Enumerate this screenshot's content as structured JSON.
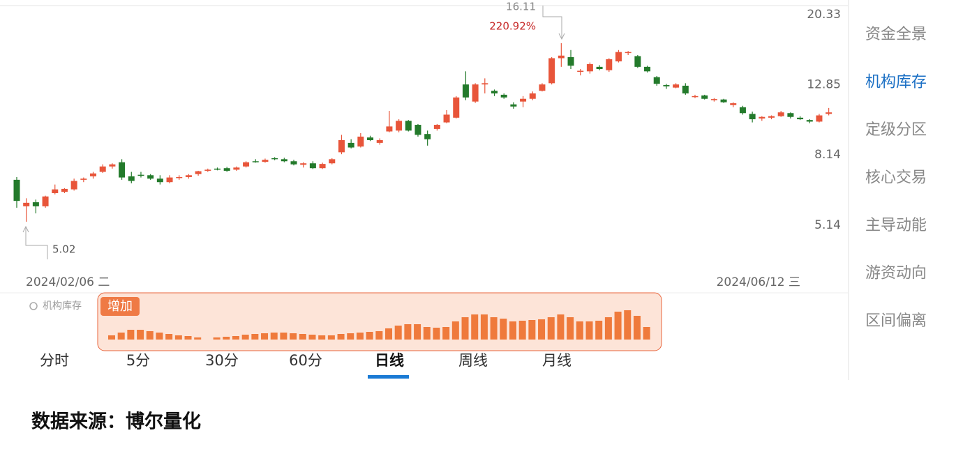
{
  "chart_data": [
    {
      "type": "candlestick",
      "log": true,
      "ylim": [
        3.7,
        20.4
      ],
      "yticks": [
        5.14,
        8.14,
        12.85,
        20.33
      ],
      "up_color": "#e8553a",
      "down_color": "#237a2b",
      "categories": [
        "2024/02/06 二",
        null,
        null,
        null,
        null,
        null,
        null,
        null,
        null,
        null,
        null,
        null,
        null,
        null,
        null,
        null,
        null,
        null,
        null,
        null,
        null,
        null,
        null,
        null,
        null,
        null,
        null,
        null,
        null,
        null,
        null,
        null,
        null,
        null,
        null,
        null,
        null,
        null,
        null,
        null,
        null,
        null,
        null,
        null,
        null,
        null,
        null,
        null,
        null,
        null,
        null,
        null,
        null,
        null,
        null,
        null,
        null,
        null,
        null,
        null,
        null,
        null,
        null,
        null,
        null,
        null,
        null,
        null,
        null,
        null,
        null,
        null,
        null,
        null,
        null,
        null,
        null,
        null,
        null,
        null,
        null,
        null,
        null,
        null,
        null,
        "2024/06/12 三"
      ],
      "open": [
        6.6,
        5.55,
        5.7,
        5.55,
        6.05,
        6.1,
        6.2,
        6.6,
        6.75,
        6.95,
        7.2,
        7.4,
        6.75,
        6.82,
        6.8,
        6.65,
        6.5,
        6.7,
        6.72,
        6.85,
        7.0,
        7.1,
        7.12,
        7.05,
        7.2,
        7.45,
        7.42,
        7.6,
        7.55,
        7.45,
        7.28,
        7.35,
        7.12,
        7.35,
        7.9,
        8.4,
        8.2,
        8.7,
        8.4,
        9.05,
        9.1,
        9.7,
        9.45,
        8.9,
        9.2,
        9.6,
        9.9,
        12.3,
        11.0,
        12.3,
        11.8,
        11.5,
        10.8,
        11.0,
        11.2,
        11.8,
        12.4,
        14.6,
        14.7,
        13.4,
        13.4,
        13.8,
        13.5,
        14.3,
        15.1,
        14.8,
        13.8,
        12.9,
        12.25,
        12.05,
        12.2,
        11.35,
        11.45,
        11.1,
        11.15,
        10.75,
        10.6,
        10.15,
        9.85,
        9.9,
        10.0,
        10.2,
        9.9,
        9.75,
        9.65,
        10.15
      ],
      "high": [
        6.72,
        5.85,
        5.8,
        5.95,
        6.4,
        6.25,
        6.65,
        6.7,
        6.95,
        7.3,
        7.35,
        7.55,
        6.95,
        6.95,
        6.85,
        6.8,
        6.8,
        6.8,
        6.85,
        7.0,
        7.1,
        7.15,
        7.18,
        7.2,
        7.45,
        7.55,
        7.58,
        7.65,
        7.62,
        7.52,
        7.4,
        7.45,
        7.38,
        7.6,
        8.85,
        8.6,
        8.95,
        8.8,
        8.65,
        10.35,
        9.8,
        9.75,
        9.5,
        9.1,
        9.5,
        10.4,
        11.4,
        13.4,
        12.4,
        12.8,
        11.9,
        11.6,
        10.95,
        11.4,
        11.75,
        12.4,
        14.7,
        16.11,
        15.4,
        13.6,
        14.2,
        13.95,
        14.6,
        15.4,
        15.3,
        14.9,
        13.9,
        13.0,
        12.35,
        12.4,
        12.4,
        11.5,
        11.5,
        11.25,
        11.2,
        10.95,
        10.7,
        10.3,
        10.0,
        10.05,
        10.35,
        10.25,
        10.0,
        9.8,
        10.15,
        10.55
      ],
      "low": [
        5.5,
        5.02,
        5.3,
        5.5,
        6.0,
        6.05,
        6.15,
        6.5,
        6.65,
        6.9,
        7.1,
        6.6,
        6.45,
        6.7,
        6.6,
        6.4,
        6.45,
        6.6,
        6.65,
        6.78,
        6.95,
        7.02,
        6.95,
        7.0,
        7.15,
        7.38,
        7.38,
        7.5,
        7.4,
        7.25,
        7.15,
        7.08,
        7.08,
        7.3,
        7.8,
        8.1,
        8.15,
        8.5,
        8.3,
        9.0,
        9.0,
        9.05,
        8.75,
        8.25,
        9.1,
        9.55,
        9.85,
        11.1,
        10.9,
        11.6,
        11.4,
        11.2,
        10.5,
        10.6,
        11.1,
        11.75,
        12.3,
        13.8,
        13.6,
        13.05,
        13.2,
        13.5,
        13.35,
        14.2,
        14.9,
        13.7,
        13.3,
        12.2,
        11.95,
        12.0,
        11.5,
        11.25,
        11.15,
        11.0,
        10.9,
        10.6,
        10.1,
        9.6,
        9.7,
        9.8,
        9.95,
        9.85,
        9.75,
        9.55,
        9.6,
        10.05
      ],
      "close": [
        5.75,
        5.68,
        5.55,
        5.92,
        6.2,
        6.22,
        6.55,
        6.65,
        6.88,
        7.2,
        7.3,
        6.7,
        6.55,
        6.78,
        6.65,
        6.5,
        6.7,
        6.72,
        6.8,
        6.98,
        7.05,
        7.05,
        7.0,
        7.15,
        7.4,
        7.42,
        7.52,
        7.55,
        7.45,
        7.3,
        7.35,
        7.12,
        7.32,
        7.55,
        8.55,
        8.15,
        8.75,
        8.55,
        8.55,
        9.35,
        9.7,
        9.1,
        8.85,
        8.6,
        9.45,
        10.1,
        11.3,
        11.3,
        12.3,
        12.4,
        11.6,
        11.3,
        10.65,
        11.2,
        11.6,
        12.3,
        14.6,
        14.85,
        13.9,
        13.45,
        14.05,
        13.6,
        14.5,
        15.2,
        15.2,
        13.8,
        13.4,
        12.35,
        12.15,
        12.3,
        11.6,
        11.4,
        11.2,
        11.18,
        10.95,
        10.88,
        10.2,
        9.8,
        9.95,
        10.0,
        10.25,
        9.95,
        9.8,
        9.65,
        10.05,
        10.25
      ],
      "annotations": [
        "16.11",
        "220.92%",
        "5.02"
      ]
    },
    {
      "type": "bar",
      "title": "机构库存",
      "label": "增加",
      "color": "#ef7a3c",
      "values": [
        6,
        10,
        14,
        14,
        12,
        10,
        8,
        6,
        5,
        3,
        0,
        3,
        4,
        5,
        7,
        8,
        9,
        10,
        10,
        9,
        8,
        7,
        6,
        6,
        8,
        9,
        10,
        11,
        12,
        16,
        20,
        22,
        22,
        18,
        17,
        18,
        26,
        32,
        36,
        36,
        32,
        30,
        26,
        27,
        28,
        29,
        32,
        36,
        32,
        26,
        26,
        27,
        32,
        40,
        42,
        34,
        18
      ]
    }
  ],
  "side_menu": [
    {
      "label": "资金全景",
      "active": false
    },
    {
      "label": "机构库存",
      "active": true
    },
    {
      "label": "定级分区",
      "active": false
    },
    {
      "label": "核心交易",
      "active": false
    },
    {
      "label": "主导动能",
      "active": false
    },
    {
      "label": "游资动向",
      "active": false
    },
    {
      "label": "区间偏离",
      "active": false
    }
  ],
  "tabs": [
    {
      "label": "分时",
      "active": false
    },
    {
      "label": "5分",
      "active": false
    },
    {
      "label": "30分",
      "active": false
    },
    {
      "label": "60分",
      "active": false
    },
    {
      "label": "日线",
      "active": true
    },
    {
      "label": "周线",
      "active": false
    },
    {
      "label": "月线",
      "active": false
    }
  ],
  "footer": "数据来源：博尔量化"
}
